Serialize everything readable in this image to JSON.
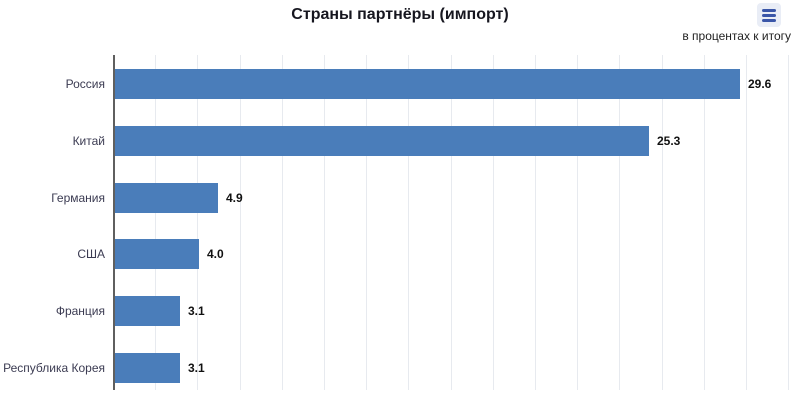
{
  "header": {
    "title": "Страны партнёры (импорт)",
    "menu_button": {
      "icon": "hamburger-icon"
    }
  },
  "subtitle": "в процентах к итогу",
  "chart_data": {
    "type": "bar",
    "orientation": "horizontal",
    "title": "Страны партнёры (импорт)",
    "subtitle": "в процентах к итогу",
    "categories": [
      "Россия",
      "Китай",
      "Германия",
      "США",
      "Франция",
      "Республика Корея"
    ],
    "values": [
      29.6,
      25.3,
      4.9,
      4.0,
      3.1,
      3.1
    ],
    "value_labels": [
      "29.6",
      "25.3",
      "4.9",
      "4.0",
      "3.1",
      "3.1"
    ],
    "xlabel": "",
    "ylabel": "",
    "xlim": [
      0,
      32
    ],
    "gridline_step": 2,
    "grid": true,
    "legend": false,
    "sort_order": "descending"
  },
  "colors": {
    "bar": "#4a7dba",
    "axis": "#5f5f5f",
    "gridline": "#e7eaef",
    "title_text": "#16161f",
    "category_text": "#3b3b52",
    "value_text": "#111111",
    "menu_button_bg": "#e9edf6",
    "menu_button_glyph": "#3a56a8",
    "background": "#ffffff"
  }
}
